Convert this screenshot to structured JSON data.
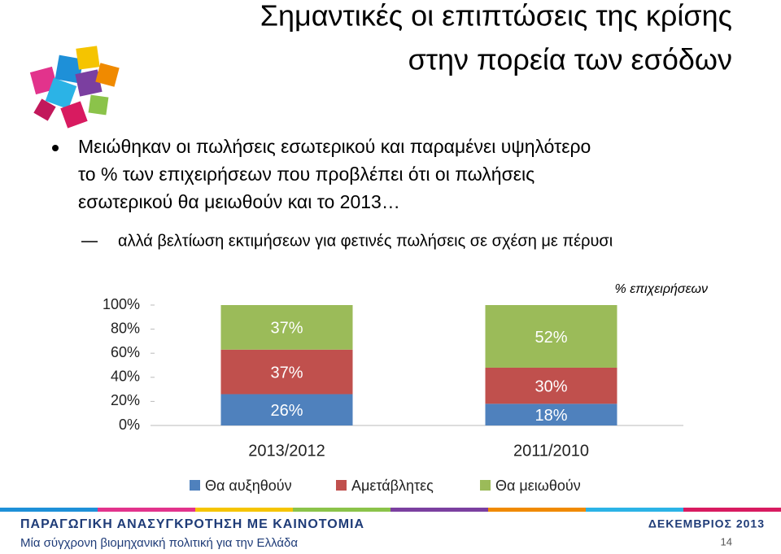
{
  "slide": {
    "title": [
      "Σημαντικές οι επιπτώσεις της κρίσης",
      "στην πορεία των εσόδων"
    ],
    "bullet": [
      "Μειώθηκαν οι πωλήσεις εσωτερικού και παραμένει υψηλότερο",
      "το % των επιχειρήσεων που προβλέπει ότι οι πωλήσεις",
      "εσωτερικού θα μειωθούν και το 2013…"
    ],
    "sub_bullet": "αλλά βελτίωση εκτιμήσεων για φετινές πωλήσεις σε σχέση με πέρυσι",
    "footer": {
      "program": "ΠΑΡΑΓΩΓΙΚΗ ΑΝΑΣΥΓΚΡΟΤΗΣΗ ΜΕ ΚΑΙΝΟΤΟΜΙΑ",
      "subtitle": "Μία σύγχρονη βιομηχανική πολιτική για την Ελλάδα",
      "date": "ΔΕΚΕΜΒΡΙΟΣ 2013",
      "page": "14"
    }
  },
  "chart_data": {
    "type": "stacked_bar",
    "annotation": "% επιχειρήσεων",
    "categories": [
      "2013/2012",
      "2011/2010"
    ],
    "series": [
      {
        "name": "Θα αυξηθούν",
        "color": "#4f81bd",
        "values": [
          26,
          18
        ],
        "value_labels": [
          "26%",
          "18%"
        ]
      },
      {
        "name": "Αμετάβλητες",
        "color": "#c0504d",
        "values": [
          37,
          30
        ],
        "value_labels": [
          "37%",
          "30%"
        ]
      },
      {
        "name": "Θα μειωθούν",
        "color": "#9bbb59",
        "values": [
          37,
          52
        ],
        "value_labels": [
          "37%",
          "52%"
        ]
      }
    ],
    "ylim": [
      0,
      100
    ],
    "yticks": [
      {
        "value": 0,
        "label": "0%"
      },
      {
        "value": 20,
        "label": "20%"
      },
      {
        "value": 40,
        "label": "40%"
      },
      {
        "value": 60,
        "label": "60%"
      },
      {
        "value": 80,
        "label": "80%"
      },
      {
        "value": 100,
        "label": "100%"
      }
    ],
    "grid": false,
    "legend": "bottom"
  }
}
